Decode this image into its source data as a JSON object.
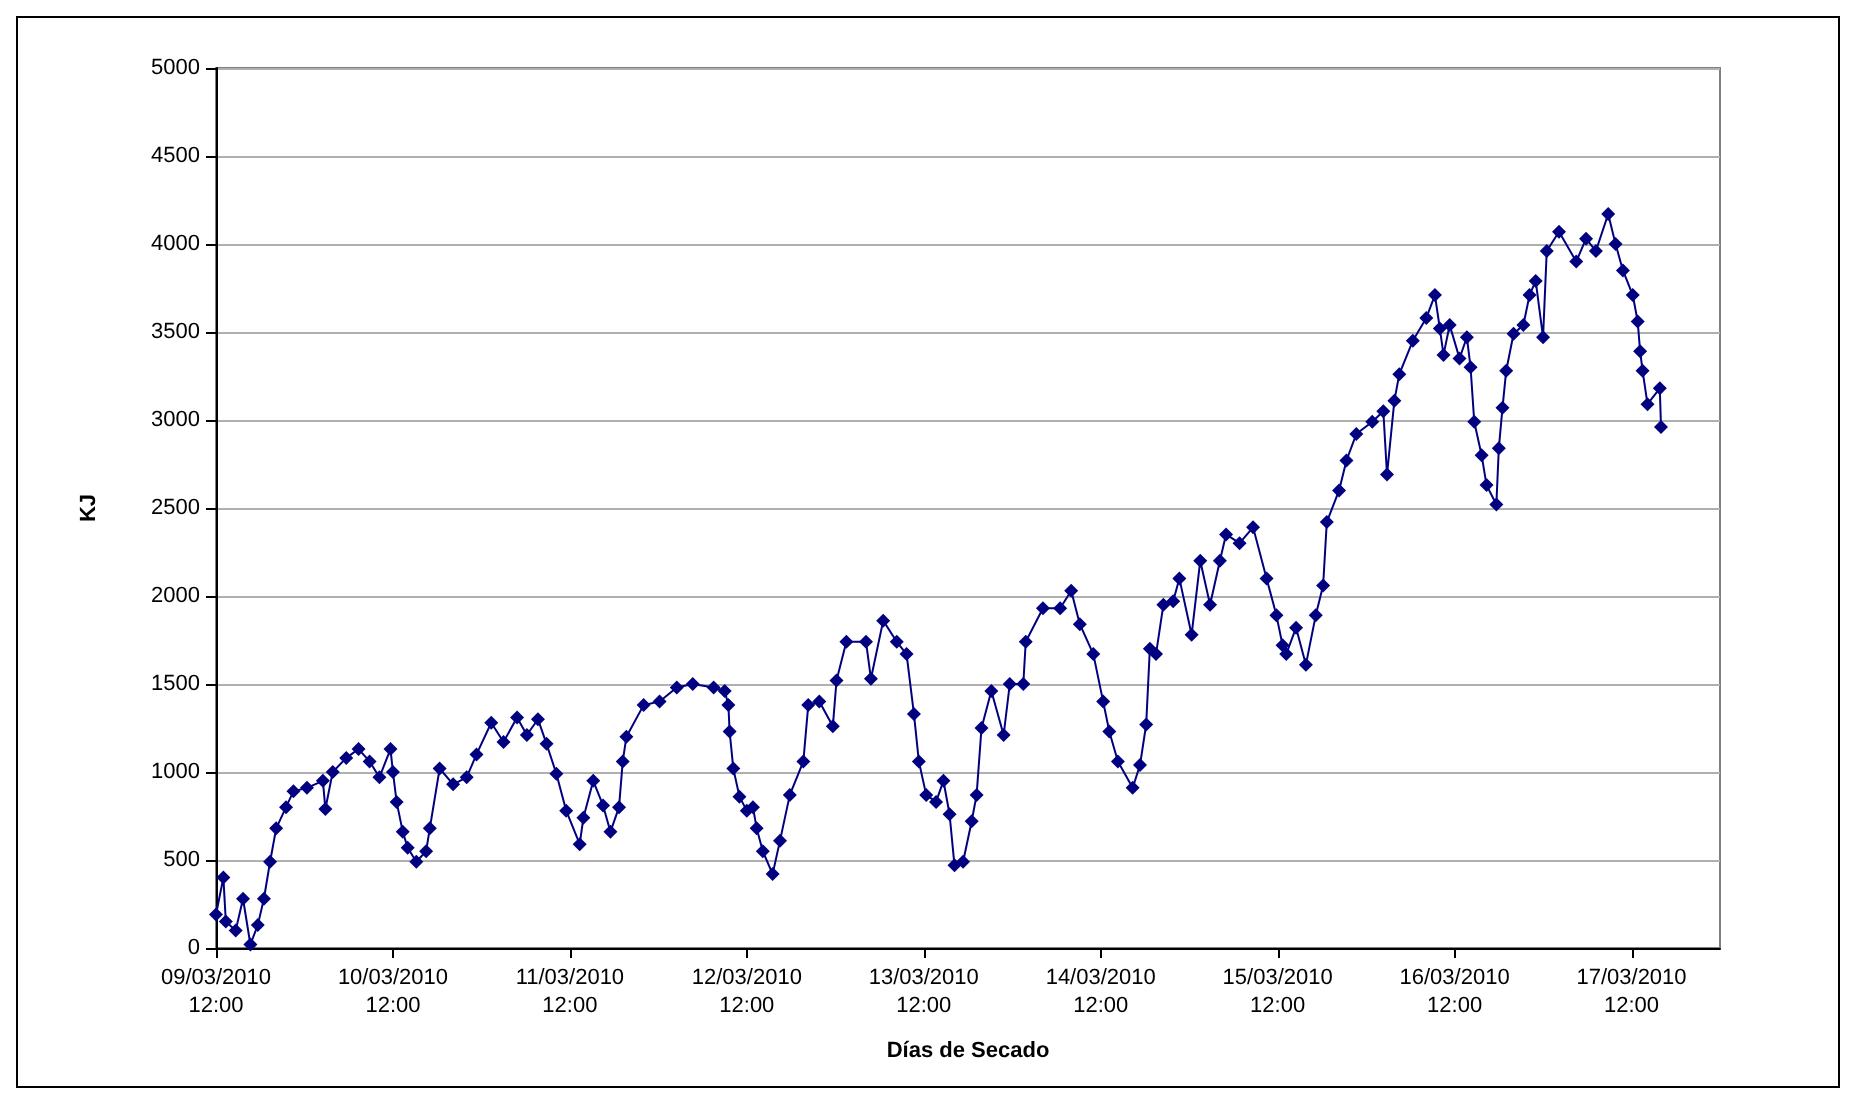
{
  "chart_data": {
    "type": "line",
    "xlabel": "Días de Secado",
    "ylabel": "KJ",
    "xlim": [
      "2010-03-09T12:00",
      "2010-03-18T00:00"
    ],
    "xticks": [
      {
        "value": "2010-03-09T12:00",
        "label": "09/03/2010\n12:00"
      },
      {
        "value": "2010-03-10T12:00",
        "label": "10/03/2010\n12:00"
      },
      {
        "value": "2010-03-11T12:00",
        "label": "11/03/2010\n12:00"
      },
      {
        "value": "2010-03-12T12:00",
        "label": "12/03/2010\n12:00"
      },
      {
        "value": "2010-03-13T12:00",
        "label": "13/03/2010\n12:00"
      },
      {
        "value": "2010-03-14T12:00",
        "label": "14/03/2010\n12:00"
      },
      {
        "value": "2010-03-15T12:00",
        "label": "15/03/2010\n12:00"
      },
      {
        "value": "2010-03-16T12:00",
        "label": "16/03/2010\n12:00"
      },
      {
        "value": "2010-03-17T12:00",
        "label": "17/03/2010\n12:00"
      }
    ],
    "ylim": [
      0,
      5000
    ],
    "yticks": [
      0,
      500,
      1000,
      1500,
      2000,
      2500,
      3000,
      3500,
      4000,
      4500,
      5000
    ],
    "grid": "y",
    "marker": "diamond",
    "line_style": "solid",
    "x": [
      "2010-03-09T12:00",
      "2010-03-09T13:00",
      "2010-03-09T13:20",
      "2010-03-09T14:40",
      "2010-03-09T15:40",
      "2010-03-09T16:40",
      "2010-03-09T17:40",
      "2010-03-09T18:30",
      "2010-03-09T19:20",
      "2010-03-09T20:10",
      "2010-03-09T21:30",
      "2010-03-09T22:30",
      "2010-03-10T00:20",
      "2010-03-10T02:30",
      "2010-03-10T02:50",
      "2010-03-10T03:50",
      "2010-03-10T05:40",
      "2010-03-10T07:20",
      "2010-03-10T08:50",
      "2010-03-10T10:10",
      "2010-03-10T11:40",
      "2010-03-10T12:00",
      "2010-03-10T12:30",
      "2010-03-10T13:20",
      "2010-03-10T14:00",
      "2010-03-10T15:10",
      "2010-03-10T16:30",
      "2010-03-10T17:00",
      "2010-03-10T18:20",
      "2010-03-10T20:10",
      "2010-03-10T22:00",
      "2010-03-10T23:20",
      "2010-03-11T01:20",
      "2010-03-11T03:00",
      "2010-03-11T04:50",
      "2010-03-11T06:10",
      "2010-03-11T07:40",
      "2010-03-11T08:50",
      "2010-03-11T10:10",
      "2010-03-11T11:30",
      "2010-03-11T13:20",
      "2010-03-11T13:50",
      "2010-03-11T15:10",
      "2010-03-11T16:30",
      "2010-03-11T17:30",
      "2010-03-11T18:40",
      "2010-03-11T19:10",
      "2010-03-11T19:40",
      "2010-03-11T22:00",
      "2010-03-12T00:10",
      "2010-03-12T02:30",
      "2010-03-12T04:40",
      "2010-03-12T07:30",
      "2010-03-12T09:00",
      "2010-03-12T09:30",
      "2010-03-12T09:40",
      "2010-03-12T10:10",
      "2010-03-12T11:00",
      "2010-03-12T12:00",
      "2010-03-12T12:50",
      "2010-03-12T13:20",
      "2010-03-12T14:10",
      "2010-03-12T15:30",
      "2010-03-12T16:30",
      "2010-03-12T17:50",
      "2010-03-12T19:40",
      "2010-03-12T20:20",
      "2010-03-12T21:50",
      "2010-03-12T23:40",
      "2010-03-13T00:10",
      "2010-03-13T01:30",
      "2010-03-13T04:10",
      "2010-03-13T04:50",
      "2010-03-13T06:30",
      "2010-03-13T08:20",
      "2010-03-13T09:40",
      "2010-03-13T10:40",
      "2010-03-13T11:20",
      "2010-03-13T12:20",
      "2010-03-13T13:40",
      "2010-03-13T14:40",
      "2010-03-13T15:30",
      "2010-03-13T16:10",
      "2010-03-13T17:20",
      "2010-03-13T18:30",
      "2010-03-13T19:10",
      "2010-03-13T19:50",
      "2010-03-13T21:10",
      "2010-03-13T22:50",
      "2010-03-13T23:40",
      "2010-03-14T01:30",
      "2010-03-14T01:50",
      "2010-03-14T04:10",
      "2010-03-14T06:30",
      "2010-03-14T08:00",
      "2010-03-14T09:10",
      "2010-03-14T11:00",
      "2010-03-14T12:20",
      "2010-03-14T13:10",
      "2010-03-14T14:20",
      "2010-03-14T16:20",
      "2010-03-14T17:20",
      "2010-03-14T18:10",
      "2010-03-14T18:40",
      "2010-03-14T19:30",
      "2010-03-14T20:30",
      "2010-03-14T21:50",
      "2010-03-14T22:40",
      "2010-03-15T00:20",
      "2010-03-15T01:30",
      "2010-03-15T02:50",
      "2010-03-15T04:10",
      "2010-03-15T05:00",
      "2010-03-15T06:50",
      "2010-03-15T08:40",
      "2010-03-15T10:30",
      "2010-03-15T11:50",
      "2010-03-15T12:40",
      "2010-03-15T13:10",
      "2010-03-15T14:30",
      "2010-03-15T15:50",
      "2010-03-15T17:10",
      "2010-03-15T18:10",
      "2010-03-15T18:40",
      "2010-03-15T20:20",
      "2010-03-15T21:20",
      "2010-03-15T22:40",
      "2010-03-16T00:50",
      "2010-03-16T02:20",
      "2010-03-16T02:50",
      "2010-03-16T03:50",
      "2010-03-16T04:30",
      "2010-03-16T06:20",
      "2010-03-16T08:10",
      "2010-03-16T09:20",
      "2010-03-16T10:00",
      "2010-03-16T10:30",
      "2010-03-16T11:20",
      "2010-03-16T12:40",
      "2010-03-16T13:40",
      "2010-03-16T14:10",
      "2010-03-16T14:40",
      "2010-03-16T15:40",
      "2010-03-16T16:20",
      "2010-03-16T17:40",
      "2010-03-16T18:00",
      "2010-03-16T18:30",
      "2010-03-16T19:00",
      "2010-03-16T20:00",
      "2010-03-16T21:20",
      "2010-03-16T22:10",
      "2010-03-16T23:00",
      "2010-03-17T00:00",
      "2010-03-17T00:30",
      "2010-03-17T02:10",
      "2010-03-17T04:30",
      "2010-03-17T05:50",
      "2010-03-17T07:10",
      "2010-03-17T08:50",
      "2010-03-17T09:50",
      "2010-03-17T10:50",
      "2010-03-17T12:10",
      "2010-03-17T12:50",
      "2010-03-17T13:10",
      "2010-03-17T13:30",
      "2010-03-17T14:10",
      "2010-03-17T15:50",
      "2010-03-17T16:00"
    ],
    "series": [
      {
        "color": "#000080",
        "values": [
          190,
          400,
          150,
          100,
          280,
          20,
          130,
          280,
          490,
          680,
          800,
          890,
          910,
          950,
          790,
          1000,
          1080,
          1130,
          1060,
          970,
          1130,
          1000,
          830,
          660,
          570,
          490,
          550,
          680,
          1020,
          930,
          970,
          1100,
          1280,
          1170,
          1310,
          1210,
          1300,
          1160,
          990,
          780,
          590,
          740,
          950,
          810,
          660,
          800,
          1060,
          1200,
          1380,
          1400,
          1480,
          1500,
          1480,
          1460,
          1380,
          1230,
          1020,
          860,
          780,
          800,
          680,
          550,
          420,
          610,
          870,
          1060,
          1380,
          1400,
          1260,
          1520,
          1740,
          1740,
          1530,
          1860,
          1740,
          1670,
          1330,
          1060,
          870,
          830,
          950,
          760,
          470,
          490,
          720,
          870,
          1250,
          1460,
          1210,
          1500,
          1500,
          1740,
          1930,
          1930,
          2030,
          1840,
          1670,
          1400,
          1230,
          1060,
          910,
          1040,
          1270,
          1700,
          1670,
          1950,
          1970,
          2100,
          1780,
          2200,
          1950,
          2200,
          2350,
          2300,
          2390,
          2100,
          1890,
          1720,
          1670,
          1820,
          1610,
          1890,
          2060,
          2420,
          2600,
          2770,
          2920,
          2990,
          3050,
          2690,
          3110,
          3260,
          3450,
          3580,
          3710,
          3520,
          3370,
          3540,
          3350,
          3470,
          3300,
          2990,
          2800,
          2630,
          2520,
          2840,
          3070,
          3280,
          3490,
          3540,
          3710,
          3790,
          3470,
          3960,
          4070,
          3900,
          4030,
          3960,
          4170,
          4000,
          3850,
          3710,
          3560,
          3390,
          3280,
          3090,
          3180,
          2960
        ]
      }
    ]
  }
}
